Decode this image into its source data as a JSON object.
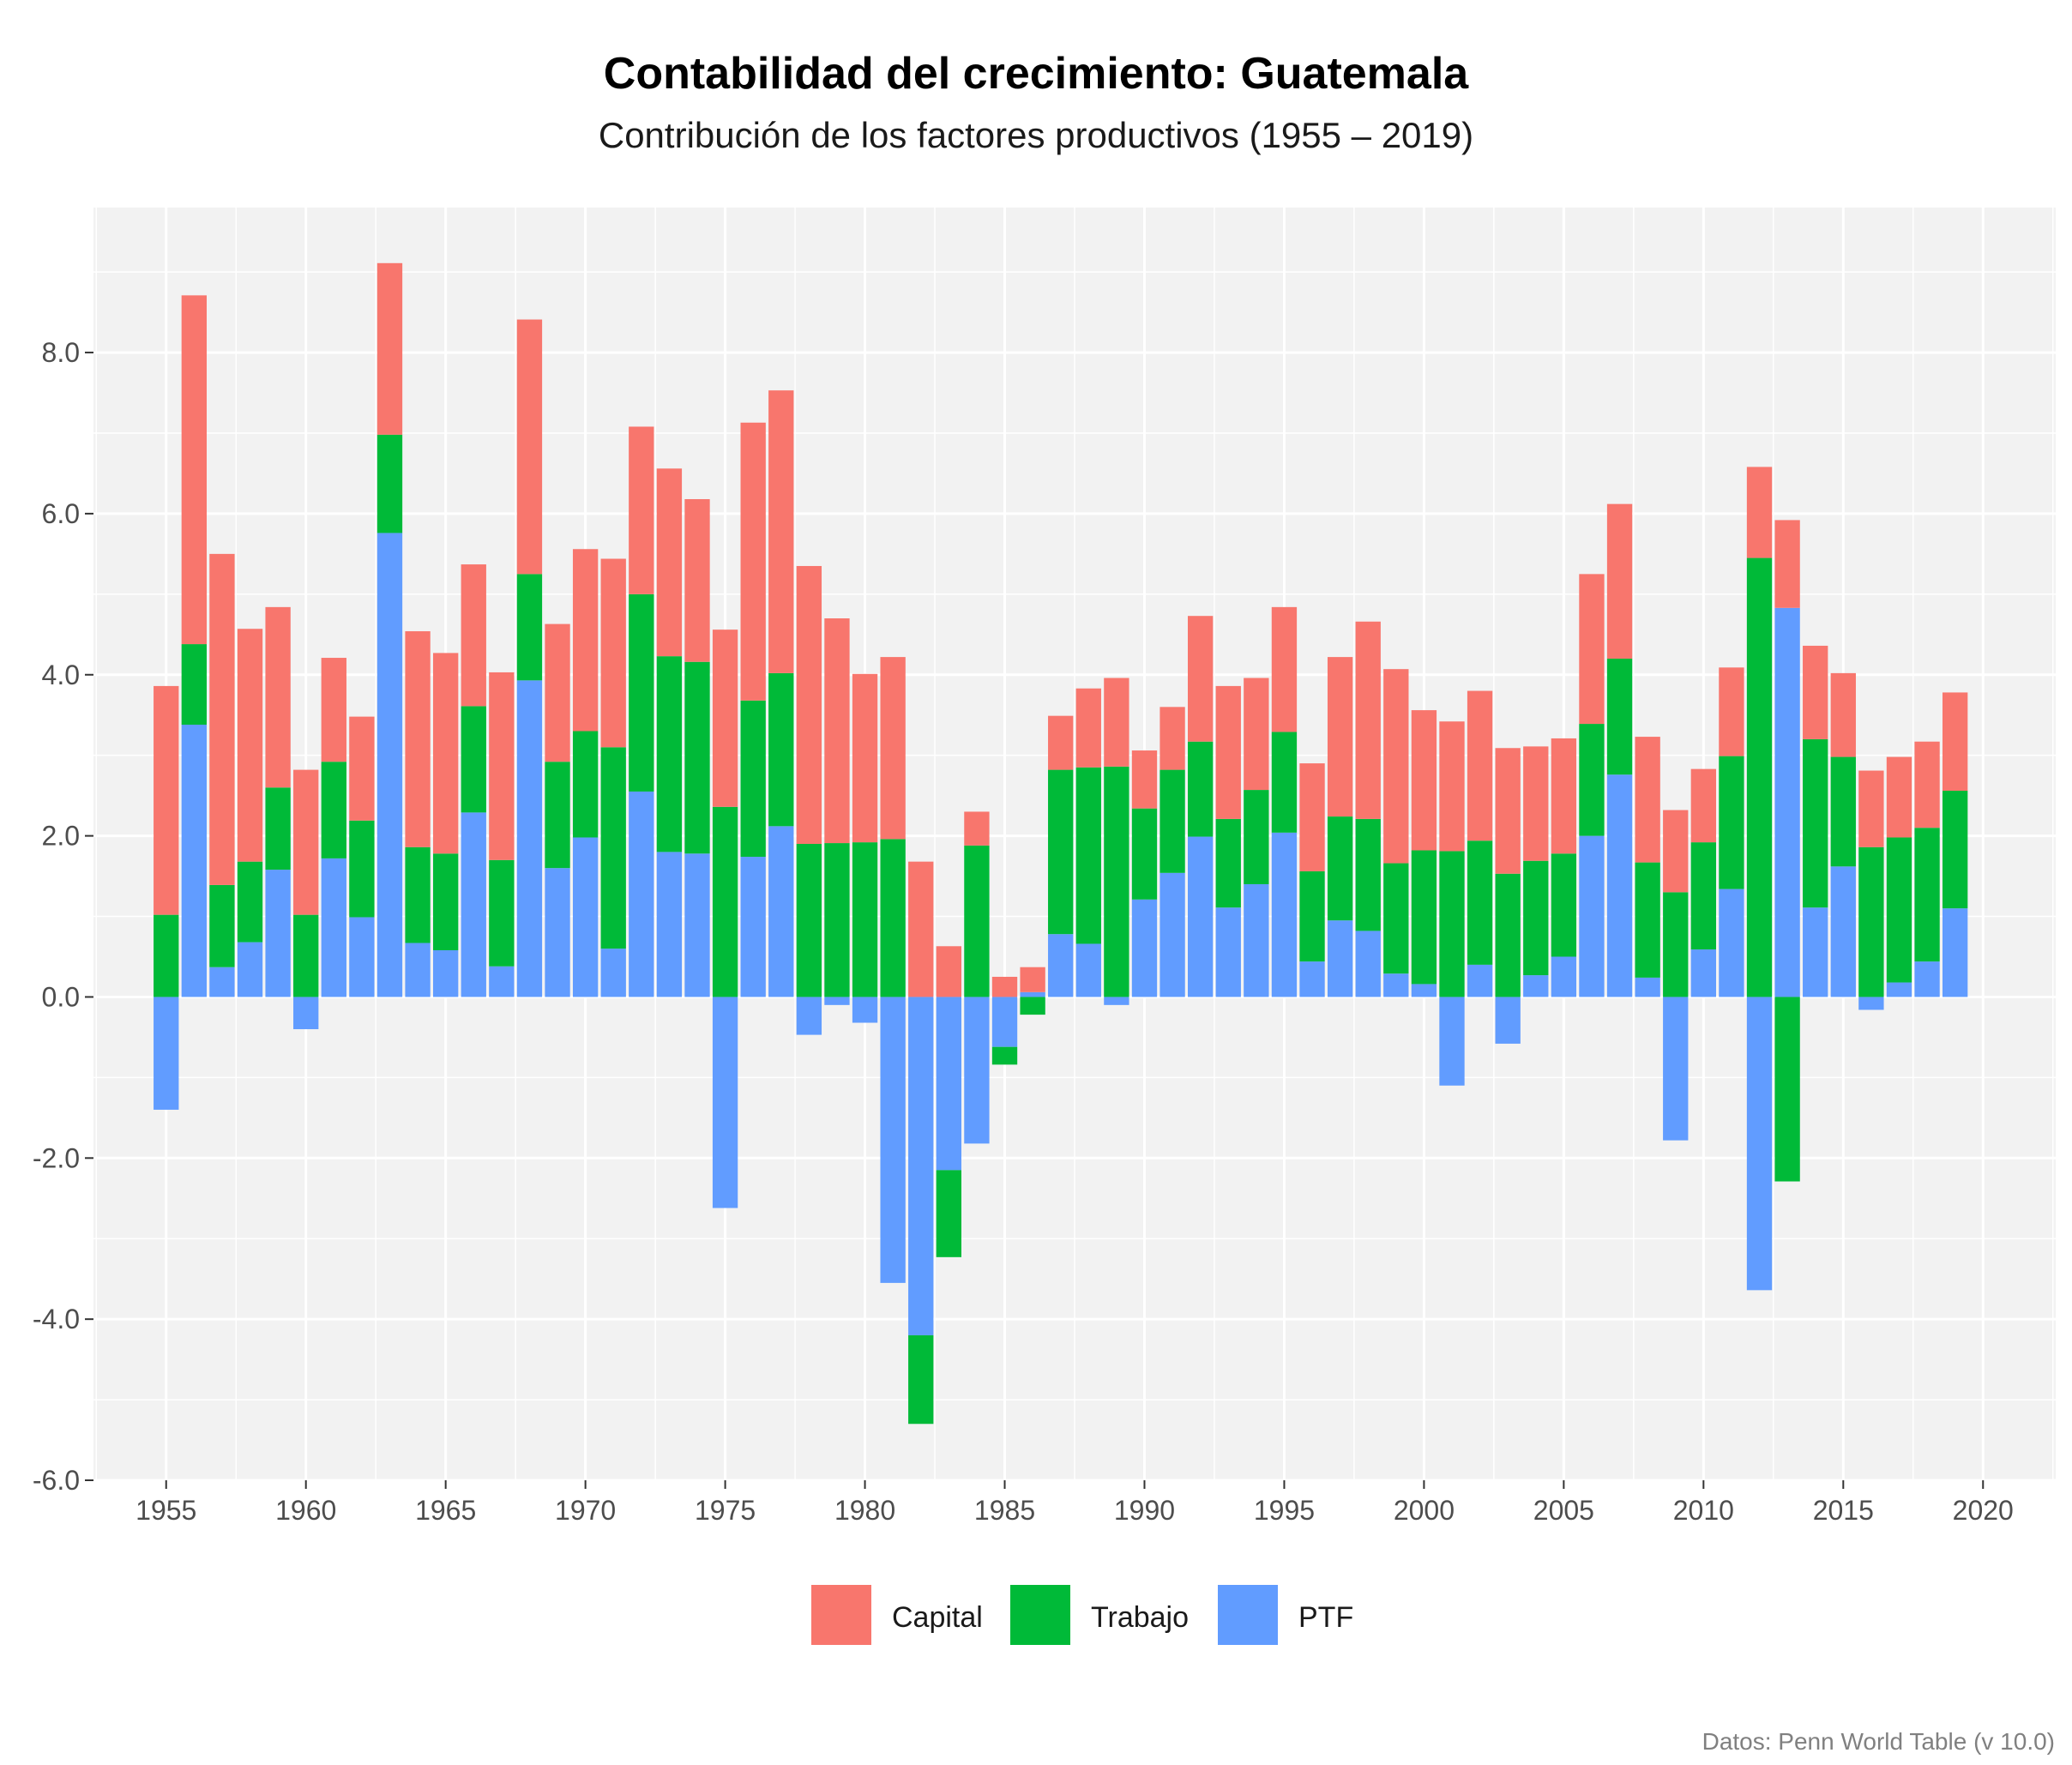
{
  "chart_data": {
    "type": "bar",
    "stacked": true,
    "title": "Contabilidad del crecimiento: Guatemala",
    "subtitle": "Contribución de los factores productivos (1955 – 2019)",
    "caption": "Datos: Penn World Table (v 10.0)",
    "xlabel": "",
    "ylabel": "",
    "x_range": [
      1952.4,
      2022.6
    ],
    "ylim": [
      -6.0,
      9.8
    ],
    "x_ticks": [
      "1955",
      "1960",
      "1965",
      "1970",
      "1975",
      "1980",
      "1985",
      "1990",
      "1995",
      "2000",
      "2005",
      "2010",
      "2015",
      "2020"
    ],
    "y_ticks": [
      "-6.0",
      "-4.0",
      "-2.0",
      "0.0",
      "2.0",
      "4.0",
      "6.0",
      "8.0"
    ],
    "grid": true,
    "legend_position": "bottom",
    "years": [
      1955,
      1956,
      1957,
      1958,
      1959,
      1960,
      1961,
      1962,
      1963,
      1964,
      1965,
      1966,
      1967,
      1968,
      1969,
      1970,
      1971,
      1972,
      1973,
      1974,
      1975,
      1976,
      1977,
      1978,
      1979,
      1980,
      1981,
      1982,
      1983,
      1984,
      1985,
      1986,
      1987,
      1988,
      1989,
      1990,
      1991,
      1992,
      1993,
      1994,
      1995,
      1996,
      1997,
      1998,
      1999,
      2000,
      2001,
      2002,
      2003,
      2004,
      2005,
      2006,
      2007,
      2008,
      2009,
      2010,
      2011,
      2012,
      2013,
      2014,
      2015,
      2016,
      2017,
      2018,
      2019
    ],
    "series": [
      {
        "name": "PTF",
        "color": "#619CFF",
        "values": [
          -1.4,
          3.38,
          0.37,
          0.68,
          1.58,
          -0.4,
          1.72,
          0.99,
          5.76,
          0.67,
          0.58,
          2.29,
          0.38,
          3.93,
          1.6,
          1.98,
          0.6,
          2.55,
          1.8,
          1.78,
          -2.62,
          1.74,
          2.12,
          -0.47,
          -0.1,
          -0.32,
          -3.55,
          -4.2,
          -2.15,
          -1.82,
          -0.62,
          0.06,
          0.78,
          0.66,
          -0.1,
          1.21,
          1.54,
          1.99,
          1.11,
          1.4,
          2.04,
          0.44,
          0.95,
          0.82,
          0.29,
          0.16,
          -1.1,
          0.4,
          -0.58,
          0.27,
          0.5,
          2.0,
          2.76,
          0.24,
          -1.78,
          0.59,
          1.34,
          -3.64,
          4.83,
          1.11,
          1.62,
          -0.16,
          0.18,
          0.44,
          1.1
        ]
      },
      {
        "name": "Trabajo",
        "color": "#00BA38",
        "values": [
          1.02,
          1.0,
          1.02,
          1.0,
          1.02,
          1.02,
          1.2,
          1.2,
          1.22,
          1.19,
          1.2,
          1.32,
          1.32,
          1.32,
          1.32,
          1.32,
          2.5,
          2.45,
          2.43,
          2.38,
          2.36,
          1.94,
          1.9,
          1.9,
          1.91,
          1.92,
          1.96,
          -1.1,
          -1.08,
          1.88,
          -0.22,
          -0.22,
          2.04,
          2.19,
          2.86,
          1.13,
          1.28,
          1.18,
          1.1,
          1.17,
          1.25,
          1.12,
          1.29,
          1.39,
          1.37,
          1.66,
          1.81,
          1.54,
          1.53,
          1.42,
          1.28,
          1.39,
          1.44,
          1.43,
          1.3,
          1.33,
          1.65,
          5.45,
          -2.29,
          2.09,
          1.36,
          1.86,
          1.8,
          1.66,
          1.46
        ]
      },
      {
        "name": "Capital",
        "color": "#F8766D",
        "values": [
          2.84,
          4.33,
          4.11,
          2.89,
          2.24,
          1.8,
          1.29,
          1.29,
          2.13,
          2.68,
          2.49,
          1.76,
          2.33,
          3.16,
          1.71,
          2.26,
          2.34,
          2.08,
          2.33,
          2.02,
          2.2,
          3.45,
          3.51,
          3.45,
          2.79,
          2.09,
          2.26,
          1.68,
          0.63,
          0.42,
          0.25,
          0.31,
          0.67,
          0.98,
          1.1,
          0.72,
          0.78,
          1.56,
          1.65,
          1.39,
          1.55,
          1.34,
          1.98,
          2.45,
          2.41,
          1.74,
          1.61,
          1.86,
          1.56,
          1.42,
          1.43,
          1.86,
          1.92,
          1.56,
          1.02,
          0.91,
          1.1,
          1.13,
          1.09,
          1.16,
          1.04,
          0.95,
          1.0,
          1.07,
          1.22
        ]
      }
    ]
  }
}
